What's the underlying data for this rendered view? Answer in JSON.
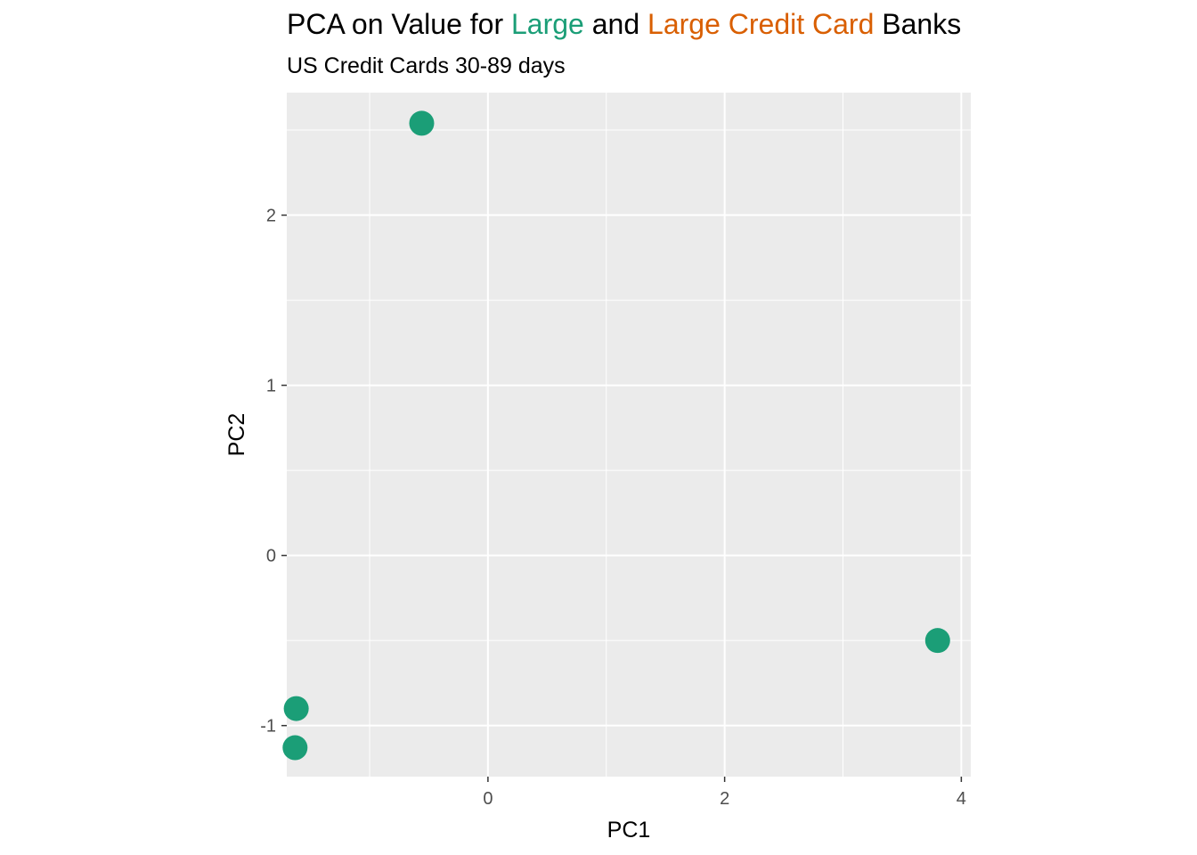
{
  "chart_data": {
    "type": "scatter",
    "title_parts": [
      {
        "text": "PCA on Value for ",
        "color": "#000000"
      },
      {
        "text": "Large",
        "color": "#1b9e77"
      },
      {
        "text": " and ",
        "color": "#000000"
      },
      {
        "text": "Large Credit Card",
        "color": "#d95f02"
      },
      {
        "text": " Banks",
        "color": "#000000"
      }
    ],
    "subtitle": "US Credit Cards 30-89 days",
    "xlabel": "PC1",
    "ylabel": "PC2",
    "xlim": [
      -1.7,
      4.08
    ],
    "ylim": [
      -1.3,
      2.72
    ],
    "x_ticks": [
      0,
      2,
      4
    ],
    "y_ticks": [
      -1,
      0,
      1,
      2
    ],
    "x_tick_labels": [
      "0",
      "2",
      "4"
    ],
    "y_tick_labels": [
      "-1",
      "0",
      "1",
      "2"
    ],
    "grid": true,
    "panel_background": "#ebebeb",
    "grid_color": "#ffffff",
    "point_color": "#1b9e77",
    "points": [
      {
        "x": -0.56,
        "y": 2.54
      },
      {
        "x": -1.62,
        "y": -0.9
      },
      {
        "x": -1.63,
        "y": -1.13
      },
      {
        "x": 3.8,
        "y": -0.5
      }
    ]
  }
}
